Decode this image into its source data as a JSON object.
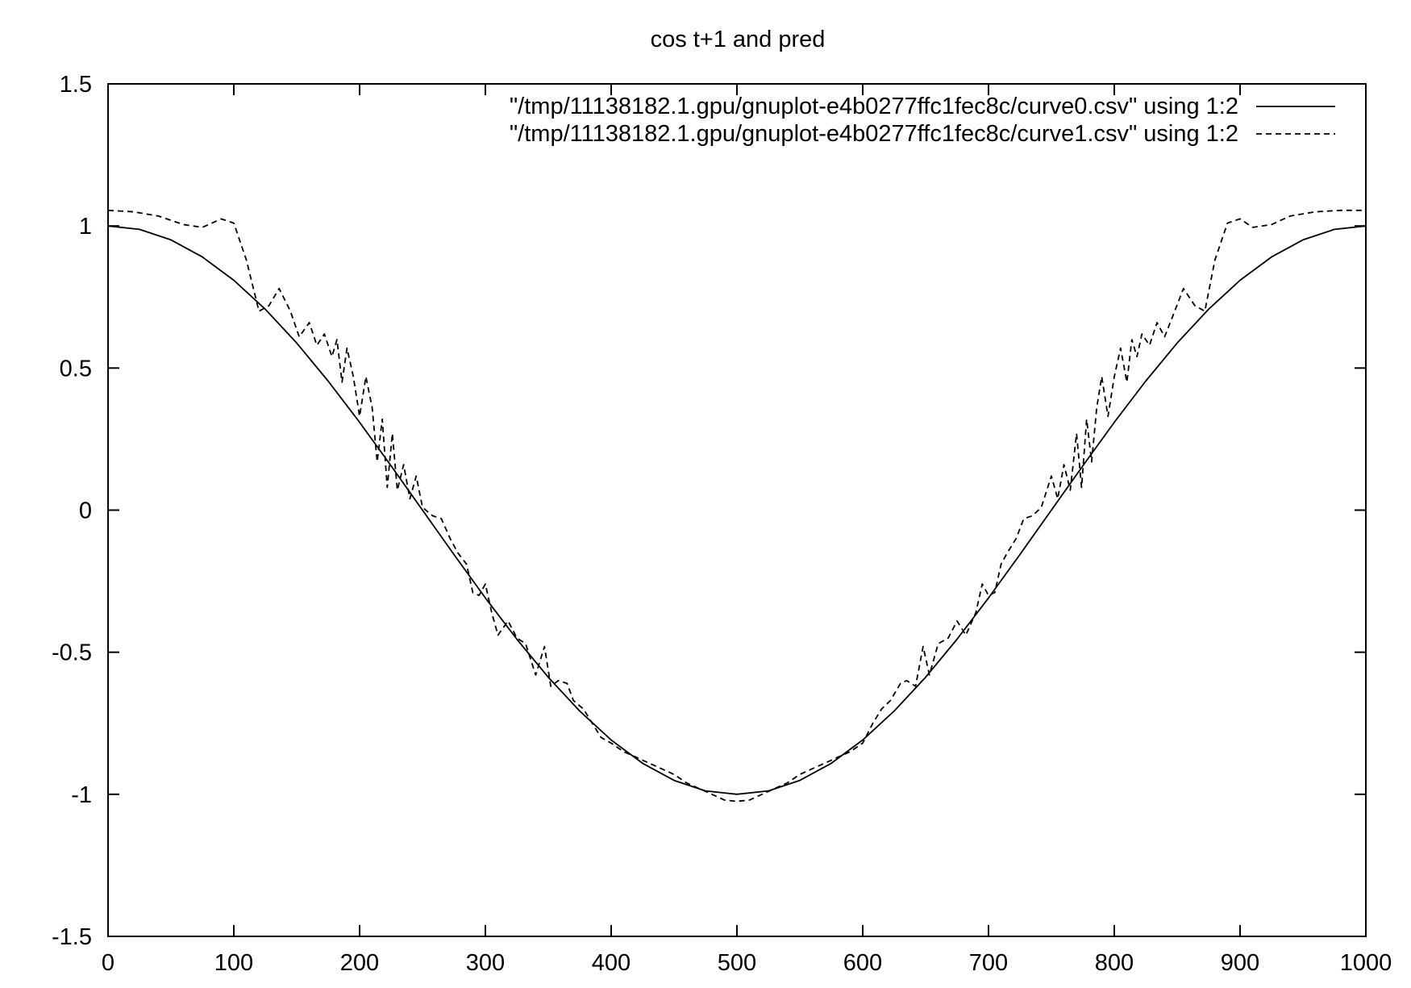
{
  "chart_data": {
    "type": "line",
    "title": "cos t+1 and pred",
    "xlabel": "",
    "ylabel": "",
    "xlim": [
      0,
      1000
    ],
    "ylim": [
      -1.5,
      1.5
    ],
    "xticks": [
      0,
      100,
      200,
      300,
      400,
      500,
      600,
      700,
      800,
      900,
      1000
    ],
    "yticks": [
      -1.5,
      -1,
      -0.5,
      0,
      0.5,
      1,
      1.5
    ],
    "xtick_labels": [
      "0",
      "100",
      "200",
      "300",
      "400",
      "500",
      "600",
      "700",
      "800",
      "900",
      "1000"
    ],
    "ytick_labels": [
      "-1.5",
      "-1",
      "-0.5",
      "0",
      "0.5",
      "1",
      "1.5"
    ],
    "grid": false,
    "legend_position": "top-right",
    "series": [
      {
        "name": "\"/tmp/11138182.1.gpu/gnuplot-e4b0277ffc1fec8c/curve0.csv\" using 1:2",
        "style": "solid",
        "color": "#000000",
        "x": [
          0,
          25,
          50,
          75,
          100,
          125,
          150,
          175,
          200,
          225,
          250,
          275,
          300,
          325,
          350,
          375,
          400,
          425,
          450,
          475,
          500,
          525,
          550,
          575,
          600,
          625,
          650,
          675,
          700,
          725,
          750,
          775,
          800,
          825,
          850,
          875,
          900,
          925,
          950,
          975,
          1000
        ],
        "y": [
          1.0,
          0.988,
          0.951,
          0.891,
          0.809,
          0.707,
          0.588,
          0.454,
          0.309,
          0.156,
          0.0,
          -0.156,
          -0.309,
          -0.454,
          -0.588,
          -0.707,
          -0.809,
          -0.891,
          -0.951,
          -0.988,
          -1.0,
          -0.988,
          -0.951,
          -0.891,
          -0.809,
          -0.707,
          -0.588,
          -0.454,
          -0.309,
          -0.156,
          0.0,
          0.156,
          0.309,
          0.454,
          0.588,
          0.707,
          0.809,
          0.891,
          0.951,
          0.988,
          1.0
        ]
      },
      {
        "name": "\"/tmp/11138182.1.gpu/gnuplot-e4b0277ffc1fec8c/curve1.csv\" using 1:2",
        "style": "dashed",
        "color": "#000000",
        "x": [
          0,
          20,
          40,
          60,
          75,
          90,
          100,
          110,
          120,
          128,
          136,
          145,
          152,
          160,
          166,
          172,
          178,
          182,
          186,
          190,
          195,
          200,
          205,
          210,
          214,
          218,
          222,
          226,
          230,
          235,
          240,
          245,
          250,
          258,
          265,
          272,
          278,
          285,
          290,
          295,
          300,
          305,
          310,
          318,
          325,
          332,
          340,
          347,
          352,
          358,
          365,
          370,
          378,
          385,
          392,
          400,
          410,
          420,
          430,
          440,
          450,
          460,
          470,
          480,
          490,
          500,
          510,
          520,
          530,
          540,
          550,
          560,
          570,
          580,
          590,
          600,
          608,
          615,
          622,
          630,
          635,
          642,
          648,
          653,
          660,
          668,
          675,
          682,
          690,
          695,
          700,
          705,
          710,
          715,
          722,
          728,
          735,
          742,
          750,
          755,
          760,
          765,
          770,
          774,
          778,
          782,
          786,
          790,
          795,
          800,
          805,
          810,
          814,
          818,
          822,
          828,
          834,
          840,
          848,
          855,
          864,
          872,
          880,
          890,
          900,
          910,
          925,
          940,
          960,
          980,
          1000
        ],
        "y": [
          1.055,
          1.05,
          1.035,
          1.005,
          0.995,
          1.025,
          1.01,
          0.88,
          0.7,
          0.72,
          0.78,
          0.7,
          0.61,
          0.66,
          0.58,
          0.62,
          0.54,
          0.6,
          0.45,
          0.57,
          0.47,
          0.33,
          0.47,
          0.36,
          0.17,
          0.32,
          0.08,
          0.27,
          0.07,
          0.16,
          0.04,
          0.12,
          0.01,
          -0.02,
          -0.03,
          -0.1,
          -0.15,
          -0.19,
          -0.29,
          -0.3,
          -0.26,
          -0.36,
          -0.44,
          -0.39,
          -0.45,
          -0.47,
          -0.58,
          -0.48,
          -0.62,
          -0.6,
          -0.61,
          -0.67,
          -0.7,
          -0.75,
          -0.8,
          -0.82,
          -0.85,
          -0.87,
          -0.89,
          -0.91,
          -0.93,
          -0.96,
          -0.98,
          -1.0,
          -1.02,
          -1.025,
          -1.02,
          -1.0,
          -0.98,
          -0.96,
          -0.93,
          -0.91,
          -0.89,
          -0.87,
          -0.85,
          -0.82,
          -0.75,
          -0.7,
          -0.67,
          -0.61,
          -0.6,
          -0.62,
          -0.48,
          -0.58,
          -0.47,
          -0.45,
          -0.39,
          -0.44,
          -0.36,
          -0.26,
          -0.3,
          -0.29,
          -0.19,
          -0.15,
          -0.1,
          -0.03,
          -0.02,
          0.01,
          0.12,
          0.04,
          0.16,
          0.07,
          0.27,
          0.08,
          0.32,
          0.17,
          0.36,
          0.47,
          0.33,
          0.47,
          0.57,
          0.45,
          0.6,
          0.54,
          0.62,
          0.58,
          0.66,
          0.61,
          0.7,
          0.78,
          0.72,
          0.7,
          0.88,
          1.01,
          1.025,
          0.995,
          1.005,
          1.035,
          1.05,
          1.055,
          1.055
        ]
      }
    ]
  }
}
